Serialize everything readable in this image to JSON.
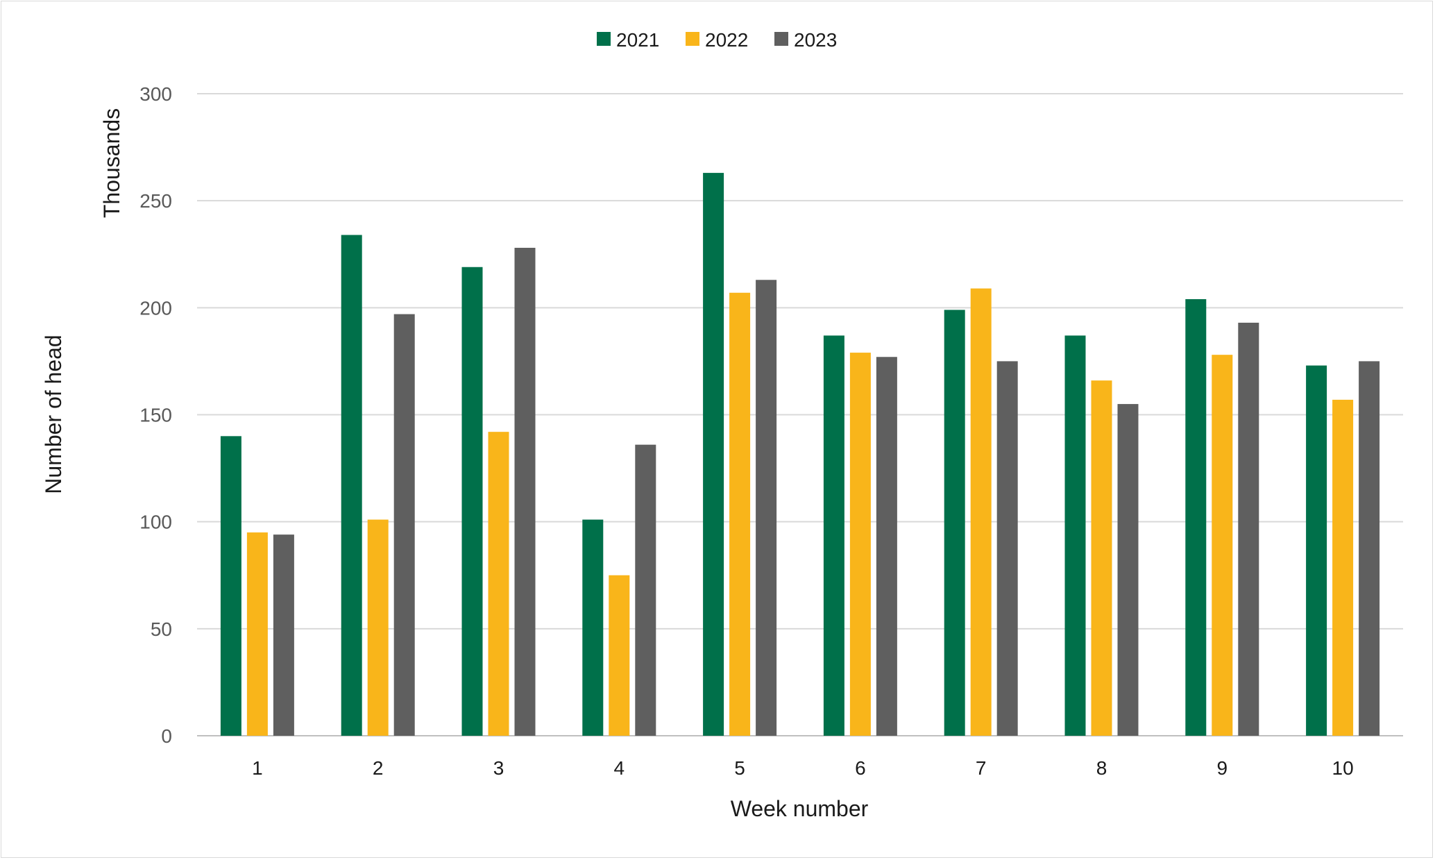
{
  "chart_data": {
    "type": "bar",
    "title": "",
    "xlabel": "Week number",
    "ylabel": "Number of head",
    "y_units_label": "Thousands",
    "ylim": [
      0,
      300
    ],
    "yticks": [
      0,
      50,
      100,
      150,
      200,
      250,
      300
    ],
    "ytick_labels": [
      "0",
      "50",
      "100",
      "150",
      "200",
      "250",
      "300"
    ],
    "grid": true,
    "legend_position": "top-center",
    "categories": [
      "1",
      "2",
      "3",
      "4",
      "5",
      "6",
      "7",
      "8",
      "9",
      "10"
    ],
    "series": [
      {
        "name": "2021",
        "color": "#00704a",
        "values": [
          140,
          234,
          219,
          101,
          263,
          187,
          199,
          187,
          204,
          173
        ]
      },
      {
        "name": "2022",
        "color": "#f9b51a",
        "values": [
          95,
          101,
          142,
          75,
          207,
          179,
          209,
          166,
          178,
          157
        ]
      },
      {
        "name": "2023",
        "color": "#5f5f5f",
        "values": [
          94,
          197,
          228,
          136,
          213,
          177,
          175,
          155,
          193,
          175
        ]
      }
    ]
  },
  "colors": {
    "gridline": "#d9d9d9",
    "axis_line": "#bfbfbf"
  }
}
